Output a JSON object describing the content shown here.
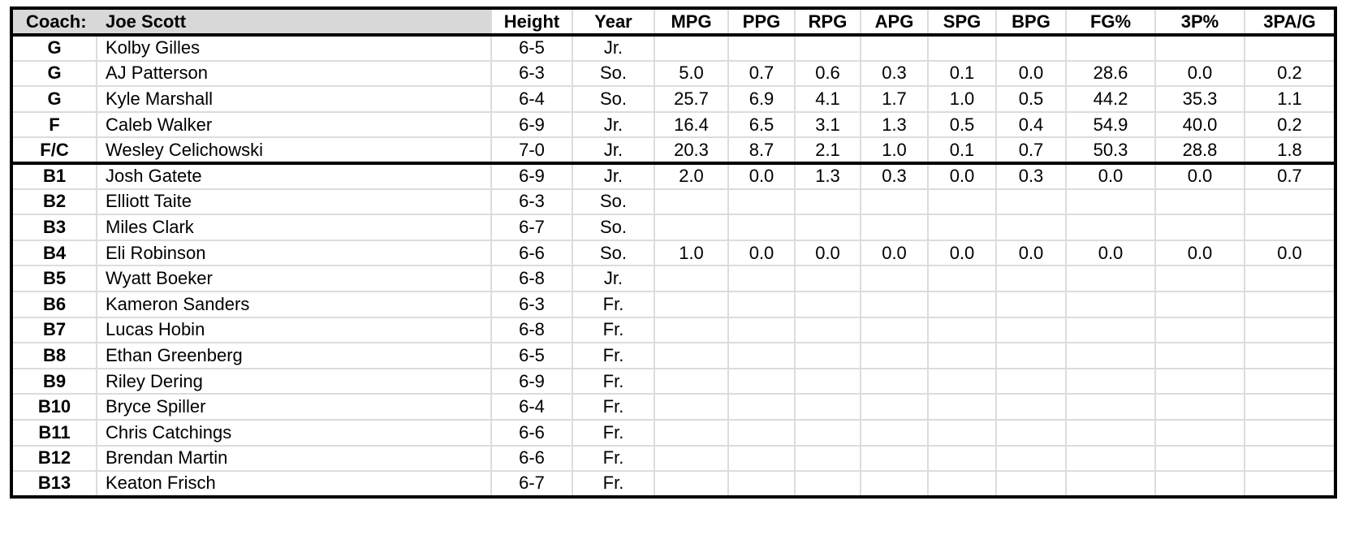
{
  "table": {
    "coach_label": "Coach:",
    "coach_name": "Joe Scott",
    "stat_columns": [
      "Height",
      "Year",
      "MPG",
      "PPG",
      "RPG",
      "APG",
      "SPG",
      "BPG",
      "FG%",
      "3P%",
      "3PA/G"
    ],
    "starters_count": 5,
    "players": [
      {
        "pos": "G",
        "name": "Kolby Gilles",
        "height": "6-5",
        "year": "Jr.",
        "stats": [
          "",
          "",
          "",
          "",
          "",
          "",
          "",
          "",
          ""
        ]
      },
      {
        "pos": "G",
        "name": "AJ Patterson",
        "height": "6-3",
        "year": "So.",
        "stats": [
          "5.0",
          "0.7",
          "0.6",
          "0.3",
          "0.1",
          "0.0",
          "28.6",
          "0.0",
          "0.2"
        ]
      },
      {
        "pos": "G",
        "name": "Kyle Marshall",
        "height": "6-4",
        "year": "So.",
        "stats": [
          "25.7",
          "6.9",
          "4.1",
          "1.7",
          "1.0",
          "0.5",
          "44.2",
          "35.3",
          "1.1"
        ]
      },
      {
        "pos": "F",
        "name": "Caleb Walker",
        "height": "6-9",
        "year": "Jr.",
        "stats": [
          "16.4",
          "6.5",
          "3.1",
          "1.3",
          "0.5",
          "0.4",
          "54.9",
          "40.0",
          "0.2"
        ]
      },
      {
        "pos": "F/C",
        "name": "Wesley Celichowski",
        "height": "7-0",
        "year": "Jr.",
        "stats": [
          "20.3",
          "8.7",
          "2.1",
          "1.0",
          "0.1",
          "0.7",
          "50.3",
          "28.8",
          "1.8"
        ]
      },
      {
        "pos": "B1",
        "name": "Josh Gatete",
        "height": "6-9",
        "year": "Jr.",
        "stats": [
          "2.0",
          "0.0",
          "1.3",
          "0.3",
          "0.0",
          "0.3",
          "0.0",
          "0.0",
          "0.7"
        ]
      },
      {
        "pos": "B2",
        "name": "Elliott Taite",
        "height": "6-3",
        "year": "So.",
        "stats": [
          "",
          "",
          "",
          "",
          "",
          "",
          "",
          "",
          ""
        ]
      },
      {
        "pos": "B3",
        "name": "Miles Clark",
        "height": "6-7",
        "year": "So.",
        "stats": [
          "",
          "",
          "",
          "",
          "",
          "",
          "",
          "",
          ""
        ]
      },
      {
        "pos": "B4",
        "name": "Eli Robinson",
        "height": "6-6",
        "year": "So.",
        "stats": [
          "1.0",
          "0.0",
          "0.0",
          "0.0",
          "0.0",
          "0.0",
          "0.0",
          "0.0",
          "0.0"
        ]
      },
      {
        "pos": "B5",
        "name": "Wyatt Boeker",
        "height": "6-8",
        "year": "Jr.",
        "stats": [
          "",
          "",
          "",
          "",
          "",
          "",
          "",
          "",
          ""
        ]
      },
      {
        "pos": "B6",
        "name": "Kameron Sanders",
        "height": "6-3",
        "year": "Fr.",
        "stats": [
          "",
          "",
          "",
          "",
          "",
          "",
          "",
          "",
          ""
        ]
      },
      {
        "pos": "B7",
        "name": "Lucas Hobin",
        "height": "6-8",
        "year": "Fr.",
        "stats": [
          "",
          "",
          "",
          "",
          "",
          "",
          "",
          "",
          ""
        ]
      },
      {
        "pos": "B8",
        "name": "Ethan Greenberg",
        "height": "6-5",
        "year": "Fr.",
        "stats": [
          "",
          "",
          "",
          "",
          "",
          "",
          "",
          "",
          ""
        ]
      },
      {
        "pos": "B9",
        "name": "Riley Dering",
        "height": "6-9",
        "year": "Fr.",
        "stats": [
          "",
          "",
          "",
          "",
          "",
          "",
          "",
          "",
          ""
        ]
      },
      {
        "pos": "B10",
        "name": "Bryce Spiller",
        "height": "6-4",
        "year": "Fr.",
        "stats": [
          "",
          "",
          "",
          "",
          "",
          "",
          "",
          "",
          ""
        ]
      },
      {
        "pos": "B11",
        "name": "Chris Catchings",
        "height": "6-6",
        "year": "Fr.",
        "stats": [
          "",
          "",
          "",
          "",
          "",
          "",
          "",
          "",
          ""
        ]
      },
      {
        "pos": "B12",
        "name": "Brendan Martin",
        "height": "6-6",
        "year": "Fr.",
        "stats": [
          "",
          "",
          "",
          "",
          "",
          "",
          "",
          "",
          ""
        ]
      },
      {
        "pos": "B13",
        "name": "Keaton Frisch",
        "height": "6-7",
        "year": "Fr.",
        "stats": [
          "",
          "",
          "",
          "",
          "",
          "",
          "",
          "",
          ""
        ]
      }
    ]
  },
  "colors": {
    "background": "#ffffff",
    "text": "#000000",
    "border": "#000000",
    "grid_line": "#dcdcdc",
    "header_bg": "#d8d8d8"
  }
}
